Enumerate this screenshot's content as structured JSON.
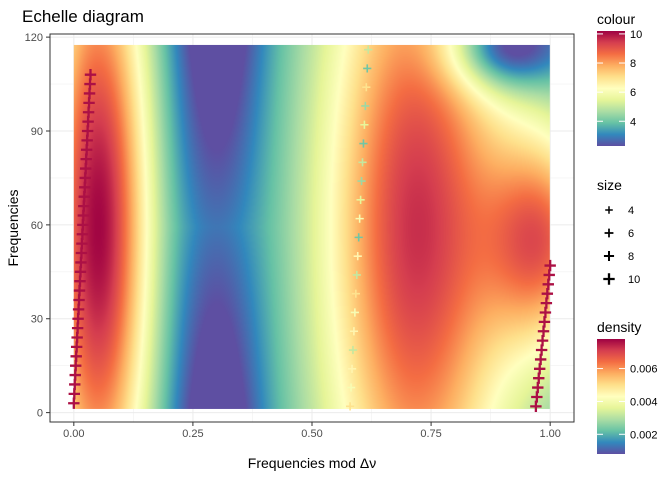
{
  "chart_data": {
    "type": "heatmap",
    "title": "Echelle diagram",
    "xlabel": "Frequencies mod Δν",
    "ylabel": "Frequencies",
    "xlim": [
      -0.05,
      1.05
    ],
    "ylim": [
      -3,
      121
    ],
    "x_ticks": [
      0.0,
      0.25,
      0.5,
      0.75,
      1.0
    ],
    "x_tick_labels": [
      "0.00",
      "0.25",
      "0.50",
      "0.75",
      "1.00"
    ],
    "y_ticks": [
      0,
      30,
      60,
      90,
      120
    ],
    "y_tick_labels": [
      "0",
      "30",
      "60",
      "90",
      "120"
    ],
    "grid": true,
    "density_extent": {
      "x": [
        0.0,
        1.0
      ],
      "y": [
        1.3,
        117.5
      ]
    },
    "palette": [
      "#5E4FA2",
      "#3288BD",
      "#66C2A5",
      "#ABDDA4",
      "#E6F598",
      "#FFFFBF",
      "#FEE08B",
      "#FDAE61",
      "#F46D43",
      "#D53E4F",
      "#9E0142"
    ],
    "legends": {
      "colour": {
        "title": "colour",
        "range": [
          2.3,
          10.2
        ],
        "ticks": [
          4,
          6,
          8,
          10
        ],
        "tick_labels": [
          "4",
          "6",
          "8",
          "10"
        ]
      },
      "size": {
        "title": "size",
        "values": [
          4,
          6,
          8,
          10
        ],
        "labels": [
          "4",
          "6",
          "8",
          "10"
        ]
      },
      "density": {
        "title": "density",
        "range": [
          0.0008,
          0.0078
        ],
        "ticks": [
          0.002,
          0.004,
          0.006
        ],
        "tick_labels": [
          "0.002",
          "0.004",
          "0.006"
        ]
      }
    },
    "series": [
      {
        "x": [
          0.0,
          0.001,
          0.002,
          0.003,
          0.004,
          0.005,
          0.006,
          0.007,
          0.008,
          0.009,
          0.01,
          0.011,
          0.012,
          0.013,
          0.014,
          0.015,
          0.016,
          0.017,
          0.018,
          0.019,
          0.02,
          0.021,
          0.022,
          0.023,
          0.024,
          0.025,
          0.026,
          0.027,
          0.028,
          0.029,
          0.03,
          0.031,
          0.032,
          0.033,
          0.034,
          0.035
        ],
        "y": [
          3,
          6,
          9,
          12,
          15,
          18,
          21,
          24,
          27,
          30,
          33,
          36,
          39,
          42,
          45,
          48,
          51,
          54,
          57,
          60,
          63,
          66,
          69,
          72,
          75,
          78,
          81,
          84,
          87,
          90,
          93,
          96,
          99,
          102,
          105,
          108
        ],
        "value": 10
      },
      {
        "x": [
          0.58,
          0.582,
          0.584,
          0.586,
          0.588,
          0.59,
          0.592,
          0.594,
          0.596,
          0.598,
          0.6,
          0.602,
          0.604,
          0.606,
          0.608,
          0.61,
          0.612,
          0.614,
          0.616,
          0.618
        ],
        "y": [
          2,
          8,
          14,
          20,
          26,
          32,
          38,
          44,
          50,
          56,
          62,
          68,
          74,
          80,
          86,
          92,
          98,
          104,
          110,
          116
        ],
        "value": 5
      },
      {
        "x": [
          0.97,
          0.972,
          0.974,
          0.976,
          0.978,
          0.98,
          0.982,
          0.984,
          0.986,
          0.988,
          0.99,
          0.992,
          0.994,
          0.996,
          0.998,
          1.0
        ],
        "y": [
          2,
          5,
          8,
          11,
          14,
          17,
          20,
          23,
          26,
          29,
          32,
          35,
          38,
          41,
          44,
          47
        ],
        "value": 10
      }
    ]
  }
}
